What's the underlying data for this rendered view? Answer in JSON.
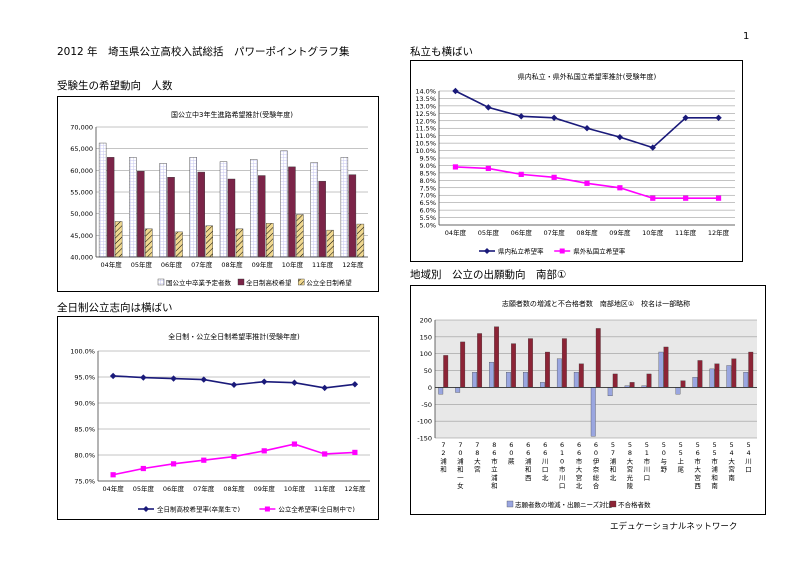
{
  "page": {
    "page_number": "1",
    "doc_title": "2012 年　埼玉県公立高校入試総括　パワーポイントグラフ集",
    "footer": "エデュケーショナルネットワーク",
    "sections": {
      "top_left": "受験生の希望動向　人数",
      "bottom_left": "全日制公立志向は横ばい",
      "top_right": "私立も横ばい",
      "bottom_right": "地域別　公立の出願動向　南部①"
    }
  },
  "colors": {
    "navy": "#1a1a7a",
    "magenta": "#ff00ff",
    "maroon": "#7b2448",
    "lavender": "#c8c8f0",
    "hatch": "#f0d890",
    "plot_bg": "#e8e8e8",
    "dist_blue": "#9aa6e0",
    "dist_red": "#8c2436"
  },
  "chart_data": [
    {
      "id": "c1",
      "type": "bar",
      "title": "国公立中3年生進路希望推計(受験年度)",
      "categories": [
        "04年度",
        "05年度",
        "06年度",
        "07年度",
        "08年度",
        "09年度",
        "10年度",
        "11年度",
        "12年度"
      ],
      "ylim": [
        40000,
        70000
      ],
      "yticks": [
        40000,
        45000,
        50000,
        55000,
        60000,
        65000,
        70000
      ],
      "ytick_labels": [
        "40,000",
        "45,000",
        "50,000",
        "55,000",
        "60,000",
        "65,000",
        "70,000"
      ],
      "legend_position": "bottom",
      "series": [
        {
          "name": "国公立中卒業予定者数",
          "values": [
            66300,
            63000,
            61600,
            63000,
            62000,
            62500,
            64500,
            61800,
            63000
          ]
        },
        {
          "name": "全日制高校希望",
          "values": [
            63000,
            59800,
            58400,
            59600,
            58000,
            58800,
            60800,
            57500,
            59000
          ]
        },
        {
          "name": "公立全日制希望",
          "values": [
            48200,
            46500,
            45800,
            47200,
            46500,
            47800,
            49800,
            46200,
            47600
          ]
        }
      ]
    },
    {
      "id": "c2",
      "type": "line",
      "title": "全日制・公立全日制希望率推計(受験年度)",
      "categories": [
        "04年度",
        "05年度",
        "06年度",
        "07年度",
        "08年度",
        "09年度",
        "10年度",
        "11年度",
        "12年度"
      ],
      "ylim": [
        75,
        100
      ],
      "yticks": [
        75,
        80,
        85,
        90,
        95,
        100
      ],
      "ytick_labels": [
        "75.0%",
        "80.0%",
        "85.0%",
        "90.0%",
        "95.0%",
        "100.0%"
      ],
      "legend_position": "bottom",
      "series": [
        {
          "name": "全日制高校希望率(卒業生で)",
          "values": [
            95.2,
            94.9,
            94.7,
            94.5,
            93.5,
            94.1,
            93.9,
            92.9,
            93.6
          ]
        },
        {
          "name": "公立全希望率(全日制中で)",
          "values": [
            76.2,
            77.4,
            78.3,
            79.0,
            79.7,
            80.8,
            82.1,
            80.2,
            80.5
          ]
        }
      ]
    },
    {
      "id": "c3",
      "type": "line",
      "title": "県内私立・県外私国立希望率推計(受験年度)",
      "categories": [
        "04年度",
        "05年度",
        "06年度",
        "07年度",
        "08年度",
        "09年度",
        "10年度",
        "11年度",
        "12年度"
      ],
      "ylim": [
        5,
        14
      ],
      "yticks": [
        5,
        5.5,
        6,
        6.5,
        7,
        7.5,
        8,
        8.5,
        9,
        9.5,
        10,
        10.5,
        11,
        11.5,
        12,
        12.5,
        13,
        13.5,
        14
      ],
      "ytick_labels": [
        "5.0%",
        "5.5%",
        "6.0%",
        "6.5%",
        "7.0%",
        "7.5%",
        "8.0%",
        "8.5%",
        "9.0%",
        "9.5%",
        "10.0%",
        "10.5%",
        "11.0%",
        "11.5%",
        "12.0%",
        "12.5%",
        "13.0%",
        "13.5%",
        "14.0%"
      ],
      "legend_position": "bottom",
      "series": [
        {
          "name": "県内私立希望率",
          "values": [
            14.0,
            12.9,
            12.3,
            12.2,
            11.5,
            10.9,
            10.2,
            12.2,
            12.2
          ]
        },
        {
          "name": "県外私国立希望率",
          "values": [
            8.9,
            8.8,
            8.4,
            8.2,
            7.8,
            7.5,
            6.8,
            6.8,
            6.8
          ]
        }
      ]
    },
    {
      "id": "c4",
      "type": "bar",
      "title": "志願者数の増減と不合格者数　南部地区①　校名は一部略称",
      "categories": [
        [
          "7",
          "2",
          "浦",
          "和"
        ],
        [
          "7",
          "0",
          "浦",
          "和",
          "一",
          "女"
        ],
        [
          "7",
          "8",
          "大",
          "宮"
        ],
        [
          "8",
          "6",
          "市",
          "立",
          "浦",
          "和"
        ],
        [
          "6",
          "0",
          "蕨"
        ],
        [
          "6",
          "6",
          "浦",
          "和",
          "西"
        ],
        [
          "6",
          "6",
          "川",
          "口",
          "北"
        ],
        [
          "6",
          "1",
          "0",
          "市",
          "川",
          "口"
        ],
        [
          "6",
          "6",
          "市",
          "大",
          "宮",
          "北"
        ],
        [
          "6",
          "0",
          "伊",
          "奈",
          "総",
          "合"
        ],
        [
          "5",
          "7",
          "浦",
          "和",
          "北"
        ],
        [
          "5",
          "8",
          "大",
          "宮",
          "光",
          "陵"
        ],
        [
          "5",
          "1",
          "市",
          "川",
          "口"
        ],
        [
          "5",
          "0",
          "与",
          "野"
        ],
        [
          "5",
          "5",
          "上",
          "尾"
        ],
        [
          "5",
          "6",
          "市",
          "大",
          "宮",
          "西"
        ],
        [
          "5",
          "5",
          "市",
          "浦",
          "和",
          "南"
        ],
        [
          "5",
          "4",
          "大",
          "宮",
          "南"
        ],
        [
          "5",
          "4",
          "川",
          "口"
        ]
      ],
      "ylim": [
        -150,
        200
      ],
      "yticks": [
        -150,
        -100,
        -50,
        0,
        50,
        100,
        150,
        200
      ],
      "ytick_labels": [
        "-150",
        "-100",
        "-50",
        "0",
        "50",
        "100",
        "150",
        "200"
      ],
      "legend_position": "bottom",
      "series": [
        {
          "name": "志願者数の増減・出願ニーズ対比",
          "values": [
            -20,
            -15,
            45,
            75,
            45,
            45,
            15,
            85,
            45,
            -145,
            -25,
            5,
            5,
            105,
            -20,
            30,
            55,
            65,
            45
          ]
        },
        {
          "name": "不合格者数",
          "values": [
            95,
            135,
            160,
            180,
            130,
            145,
            105,
            145,
            70,
            175,
            40,
            15,
            40,
            120,
            20,
            80,
            70,
            85,
            105
          ]
        }
      ]
    }
  ]
}
